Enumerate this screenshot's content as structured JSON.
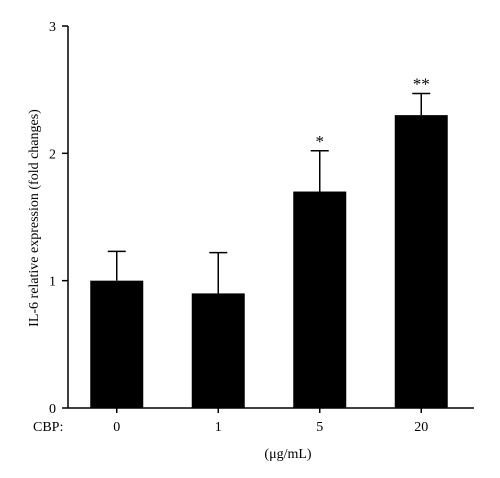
{
  "chart_data": {
    "type": "bar",
    "categories": [
      "0",
      "1",
      "5",
      "20"
    ],
    "values": [
      1.0,
      0.9,
      1.7,
      2.3
    ],
    "errors": [
      0.23,
      0.32,
      0.32,
      0.17
    ],
    "significance": [
      "",
      "",
      "*",
      "**"
    ],
    "ylabel": "IL-6 relative expression (fold changes)",
    "xprefix": "CBP:",
    "xunit": "(μg/mL)",
    "ylim": [
      0,
      3
    ],
    "yticks": [
      "0",
      "1",
      "2",
      "3"
    ],
    "bar_color": "#000000"
  }
}
